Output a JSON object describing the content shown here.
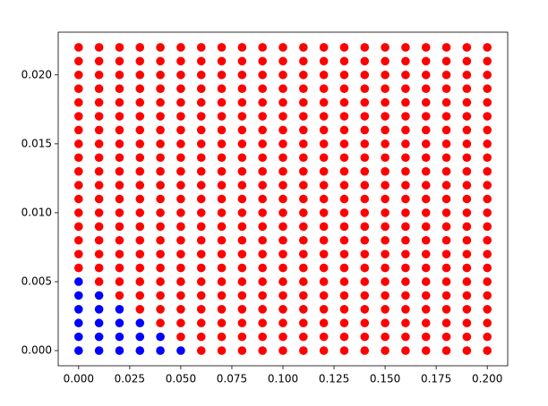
{
  "chart_data": {
    "type": "scatter",
    "xlim": [
      -0.01,
      0.21
    ],
    "ylim": [
      -0.0011,
      0.0231
    ],
    "xticks": [
      {
        "value": 0,
        "label": "0.000"
      },
      {
        "value": 0.025,
        "label": "0.025"
      },
      {
        "value": 0.05,
        "label": "0.050"
      },
      {
        "value": 0.075,
        "label": "0.075"
      },
      {
        "value": 0.1,
        "label": "0.100"
      },
      {
        "value": 0.125,
        "label": "0.125"
      },
      {
        "value": 0.15,
        "label": "0.150"
      },
      {
        "value": 0.175,
        "label": "0.175"
      },
      {
        "value": 0.2,
        "label": "0.200"
      }
    ],
    "yticks": [
      {
        "value": 0,
        "label": "0.000"
      },
      {
        "value": 0.005,
        "label": "0.005"
      },
      {
        "value": 0.01,
        "label": "0.010"
      },
      {
        "value": 0.015,
        "label": "0.015"
      },
      {
        "value": 0.02,
        "label": "0.020"
      }
    ],
    "series": [
      {
        "color": "#0000ff",
        "x": [
          0,
          0,
          0,
          0,
          0,
          0,
          0.01,
          0.01,
          0.01,
          0.01,
          0.01,
          0.02,
          0.02,
          0.02,
          0.02,
          0.03,
          0.03,
          0.03,
          0.04,
          0.04,
          0.05
        ],
        "values": [
          0,
          0.001,
          0.002,
          0.003,
          0.004,
          0.005,
          0,
          0.001,
          0.002,
          0.003,
          0.004,
          0,
          0.001,
          0.002,
          0.003,
          0,
          0.001,
          0.002,
          0,
          0.001,
          0
        ]
      },
      {
        "color": "#ff0000",
        "x": [
          0,
          0,
          0,
          0,
          0,
          0,
          0,
          0,
          0,
          0,
          0,
          0,
          0,
          0,
          0,
          0,
          0,
          0.01,
          0.01,
          0.01,
          0.01,
          0.01,
          0.01,
          0.01,
          0.01,
          0.01,
          0.01,
          0.01,
          0.01,
          0.01,
          0.01,
          0.01,
          0.01,
          0.01,
          0.01,
          0.02,
          0.02,
          0.02,
          0.02,
          0.02,
          0.02,
          0.02,
          0.02,
          0.02,
          0.02,
          0.02,
          0.02,
          0.02,
          0.02,
          0.02,
          0.02,
          0.02,
          0.02,
          0.02,
          0.03,
          0.03,
          0.03,
          0.03,
          0.03,
          0.03,
          0.03,
          0.03,
          0.03,
          0.03,
          0.03,
          0.03,
          0.03,
          0.03,
          0.03,
          0.03,
          0.03,
          0.03,
          0.03,
          0.03,
          0.04,
          0.04,
          0.04,
          0.04,
          0.04,
          0.04,
          0.04,
          0.04,
          0.04,
          0.04,
          0.04,
          0.04,
          0.04,
          0.04,
          0.04,
          0.04,
          0.04,
          0.04,
          0.04,
          0.04,
          0.04,
          0.05,
          0.05,
          0.05,
          0.05,
          0.05,
          0.05,
          0.05,
          0.05,
          0.05,
          0.05,
          0.05,
          0.05,
          0.05,
          0.05,
          0.05,
          0.05,
          0.05,
          0.05,
          0.05,
          0.05,
          0.05,
          0.05,
          0.06,
          0.06,
          0.06,
          0.06,
          0.06,
          0.06,
          0.06,
          0.06,
          0.06,
          0.06,
          0.06,
          0.06,
          0.06,
          0.06,
          0.06,
          0.06,
          0.06,
          0.06,
          0.06,
          0.06,
          0.06,
          0.06,
          0.06,
          0.07,
          0.07,
          0.07,
          0.07,
          0.07,
          0.07,
          0.07,
          0.07,
          0.07,
          0.07,
          0.07,
          0.07,
          0.07,
          0.07,
          0.07,
          0.07,
          0.07,
          0.07,
          0.07,
          0.07,
          0.07,
          0.07,
          0.07,
          0.08,
          0.08,
          0.08,
          0.08,
          0.08,
          0.08,
          0.08,
          0.08,
          0.08,
          0.08,
          0.08,
          0.08,
          0.08,
          0.08,
          0.08,
          0.08,
          0.08,
          0.08,
          0.08,
          0.08,
          0.08,
          0.08,
          0.08,
          0.09,
          0.09,
          0.09,
          0.09,
          0.09,
          0.09,
          0.09,
          0.09,
          0.09,
          0.09,
          0.09,
          0.09,
          0.09,
          0.09,
          0.09,
          0.09,
          0.09,
          0.09,
          0.09,
          0.09,
          0.09,
          0.09,
          0.09,
          0.1,
          0.1,
          0.1,
          0.1,
          0.1,
          0.1,
          0.1,
          0.1,
          0.1,
          0.1,
          0.1,
          0.1,
          0.1,
          0.1,
          0.1,
          0.1,
          0.1,
          0.1,
          0.1,
          0.1,
          0.1,
          0.1,
          0.1,
          0.11,
          0.11,
          0.11,
          0.11,
          0.11,
          0.11,
          0.11,
          0.11,
          0.11,
          0.11,
          0.11,
          0.11,
          0.11,
          0.11,
          0.11,
          0.11,
          0.11,
          0.11,
          0.11,
          0.11,
          0.11,
          0.11,
          0.11,
          0.12,
          0.12,
          0.12,
          0.12,
          0.12,
          0.12,
          0.12,
          0.12,
          0.12,
          0.12,
          0.12,
          0.12,
          0.12,
          0.12,
          0.12,
          0.12,
          0.12,
          0.12,
          0.12,
          0.12,
          0.12,
          0.12,
          0.12,
          0.13,
          0.13,
          0.13,
          0.13,
          0.13,
          0.13,
          0.13,
          0.13,
          0.13,
          0.13,
          0.13,
          0.13,
          0.13,
          0.13,
          0.13,
          0.13,
          0.13,
          0.13,
          0.13,
          0.13,
          0.13,
          0.13,
          0.13,
          0.14,
          0.14,
          0.14,
          0.14,
          0.14,
          0.14,
          0.14,
          0.14,
          0.14,
          0.14,
          0.14,
          0.14,
          0.14,
          0.14,
          0.14,
          0.14,
          0.14,
          0.14,
          0.14,
          0.14,
          0.14,
          0.14,
          0.14,
          0.15,
          0.15,
          0.15,
          0.15,
          0.15,
          0.15,
          0.15,
          0.15,
          0.15,
          0.15,
          0.15,
          0.15,
          0.15,
          0.15,
          0.15,
          0.15,
          0.15,
          0.15,
          0.15,
          0.15,
          0.15,
          0.15,
          0.15,
          0.16,
          0.16,
          0.16,
          0.16,
          0.16,
          0.16,
          0.16,
          0.16,
          0.16,
          0.16,
          0.16,
          0.16,
          0.16,
          0.16,
          0.16,
          0.16,
          0.16,
          0.16,
          0.16,
          0.16,
          0.16,
          0.16,
          0.16,
          0.17,
          0.17,
          0.17,
          0.17,
          0.17,
          0.17,
          0.17,
          0.17,
          0.17,
          0.17,
          0.17,
          0.17,
          0.17,
          0.17,
          0.17,
          0.17,
          0.17,
          0.17,
          0.17,
          0.17,
          0.17,
          0.17,
          0.17,
          0.18,
          0.18,
          0.18,
          0.18,
          0.18,
          0.18,
          0.18,
          0.18,
          0.18,
          0.18,
          0.18,
          0.18,
          0.18,
          0.18,
          0.18,
          0.18,
          0.18,
          0.18,
          0.18,
          0.18,
          0.18,
          0.18,
          0.18,
          0.19,
          0.19,
          0.19,
          0.19,
          0.19,
          0.19,
          0.19,
          0.19,
          0.19,
          0.19,
          0.19,
          0.19,
          0.19,
          0.19,
          0.19,
          0.19,
          0.19,
          0.19,
          0.19,
          0.19,
          0.19,
          0.19,
          0.19,
          0.2,
          0.2,
          0.2,
          0.2,
          0.2,
          0.2,
          0.2,
          0.2,
          0.2,
          0.2,
          0.2,
          0.2,
          0.2,
          0.2,
          0.2,
          0.2,
          0.2,
          0.2,
          0.2,
          0.2,
          0.2,
          0.2,
          0.2
        ],
        "values": [
          0.006,
          0.007,
          0.008,
          0.009,
          0.01,
          0.011,
          0.012,
          0.013,
          0.014,
          0.015,
          0.016,
          0.017,
          0.018,
          0.019,
          0.02,
          0.021,
          0.022,
          0.005,
          0.006,
          0.007,
          0.008,
          0.009,
          0.01,
          0.011,
          0.012,
          0.013,
          0.014,
          0.015,
          0.016,
          0.017,
          0.018,
          0.019,
          0.02,
          0.021,
          0.022,
          0.004,
          0.005,
          0.006,
          0.007,
          0.008,
          0.009,
          0.01,
          0.011,
          0.012,
          0.013,
          0.014,
          0.015,
          0.016,
          0.017,
          0.018,
          0.019,
          0.02,
          0.021,
          0.022,
          0.003,
          0.004,
          0.005,
          0.006,
          0.007,
          0.008,
          0.009,
          0.01,
          0.011,
          0.012,
          0.013,
          0.014,
          0.015,
          0.016,
          0.017,
          0.018,
          0.019,
          0.02,
          0.021,
          0.022,
          0.002,
          0.003,
          0.004,
          0.005,
          0.006,
          0.007,
          0.008,
          0.009,
          0.01,
          0.011,
          0.012,
          0.013,
          0.014,
          0.015,
          0.016,
          0.017,
          0.018,
          0.019,
          0.02,
          0.021,
          0.022,
          0.001,
          0.002,
          0.003,
          0.004,
          0.005,
          0.006,
          0.007,
          0.008,
          0.009,
          0.01,
          0.011,
          0.012,
          0.013,
          0.014,
          0.015,
          0.016,
          0.017,
          0.018,
          0.019,
          0.02,
          0.021,
          0.022,
          0,
          0.001,
          0.002,
          0.003,
          0.004,
          0.005,
          0.006,
          0.007,
          0.008,
          0.009,
          0.01,
          0.011,
          0.012,
          0.013,
          0.014,
          0.015,
          0.016,
          0.017,
          0.018,
          0.019,
          0.02,
          0.021,
          0.022,
          0,
          0.001,
          0.002,
          0.003,
          0.004,
          0.005,
          0.006,
          0.007,
          0.008,
          0.009,
          0.01,
          0.011,
          0.012,
          0.013,
          0.014,
          0.015,
          0.016,
          0.017,
          0.018,
          0.019,
          0.02,
          0.021,
          0.022,
          0,
          0.001,
          0.002,
          0.003,
          0.004,
          0.005,
          0.006,
          0.007,
          0.008,
          0.009,
          0.01,
          0.011,
          0.012,
          0.013,
          0.014,
          0.015,
          0.016,
          0.017,
          0.018,
          0.019,
          0.02,
          0.021,
          0.022,
          0,
          0.001,
          0.002,
          0.003,
          0.004,
          0.005,
          0.006,
          0.007,
          0.008,
          0.009,
          0.01,
          0.011,
          0.012,
          0.013,
          0.014,
          0.015,
          0.016,
          0.017,
          0.018,
          0.019,
          0.02,
          0.021,
          0.022,
          0,
          0.001,
          0.002,
          0.003,
          0.004,
          0.005,
          0.006,
          0.007,
          0.008,
          0.009,
          0.01,
          0.011,
          0.012,
          0.013,
          0.014,
          0.015,
          0.016,
          0.017,
          0.018,
          0.019,
          0.02,
          0.021,
          0.022,
          0,
          0.001,
          0.002,
          0.003,
          0.004,
          0.005,
          0.006,
          0.007,
          0.008,
          0.009,
          0.01,
          0.011,
          0.012,
          0.013,
          0.014,
          0.015,
          0.016,
          0.017,
          0.018,
          0.019,
          0.02,
          0.021,
          0.022,
          0,
          0.001,
          0.002,
          0.003,
          0.004,
          0.005,
          0.006,
          0.007,
          0.008,
          0.009,
          0.01,
          0.011,
          0.012,
          0.013,
          0.014,
          0.015,
          0.016,
          0.017,
          0.018,
          0.019,
          0.02,
          0.021,
          0.022,
          0,
          0.001,
          0.002,
          0.003,
          0.004,
          0.005,
          0.006,
          0.007,
          0.008,
          0.009,
          0.01,
          0.011,
          0.012,
          0.013,
          0.014,
          0.015,
          0.016,
          0.017,
          0.018,
          0.019,
          0.02,
          0.021,
          0.022,
          0,
          0.001,
          0.002,
          0.003,
          0.004,
          0.005,
          0.006,
          0.007,
          0.008,
          0.009,
          0.01,
          0.011,
          0.012,
          0.013,
          0.014,
          0.015,
          0.016,
          0.017,
          0.018,
          0.019,
          0.02,
          0.021,
          0.022,
          0,
          0.001,
          0.002,
          0.003,
          0.004,
          0.005,
          0.006,
          0.007,
          0.008,
          0.009,
          0.01,
          0.011,
          0.012,
          0.013,
          0.014,
          0.015,
          0.016,
          0.017,
          0.018,
          0.019,
          0.02,
          0.021,
          0.022,
          0,
          0.001,
          0.002,
          0.003,
          0.004,
          0.005,
          0.006,
          0.007,
          0.008,
          0.009,
          0.01,
          0.011,
          0.012,
          0.013,
          0.014,
          0.015,
          0.016,
          0.017,
          0.018,
          0.019,
          0.02,
          0.021,
          0.022,
          0,
          0.001,
          0.002,
          0.003,
          0.004,
          0.005,
          0.006,
          0.007,
          0.008,
          0.009,
          0.01,
          0.011,
          0.012,
          0.013,
          0.014,
          0.015,
          0.016,
          0.017,
          0.018,
          0.019,
          0.02,
          0.021,
          0.022,
          0,
          0.001,
          0.002,
          0.003,
          0.004,
          0.005,
          0.006,
          0.007,
          0.008,
          0.009,
          0.01,
          0.011,
          0.012,
          0.013,
          0.014,
          0.015,
          0.016,
          0.017,
          0.018,
          0.019,
          0.02,
          0.021,
          0.022,
          0,
          0.001,
          0.002,
          0.003,
          0.004,
          0.005,
          0.006,
          0.007,
          0.008,
          0.009,
          0.01,
          0.011,
          0.012,
          0.013,
          0.014,
          0.015,
          0.016,
          0.017,
          0.018,
          0.019,
          0.02,
          0.021,
          0.022,
          0,
          0.001,
          0.002,
          0.003,
          0.004,
          0.005,
          0.006,
          0.007,
          0.008,
          0.009,
          0.01,
          0.011,
          0.012,
          0.013,
          0.014,
          0.015,
          0.016,
          0.017,
          0.018,
          0.019,
          0.02,
          0.021,
          0.022
        ]
      }
    ]
  }
}
